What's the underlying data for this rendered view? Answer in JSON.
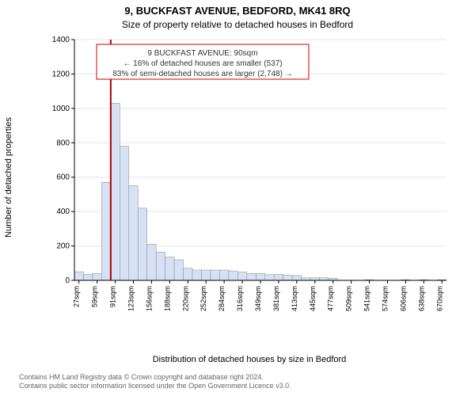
{
  "header": {
    "title": "9, BUCKFAST AVENUE, BEDFORD, MK41 8RQ",
    "subtitle": "Size of property relative to detached houses in Bedford"
  },
  "axes": {
    "ylabel": "Number of detached properties",
    "xlabel": "Distribution of detached houses by size in Bedford"
  },
  "chart": {
    "type": "histogram",
    "bar_fill": "#d6e1f4",
    "bar_stroke": "#888888",
    "grid_color": "#e5e5e5",
    "background_color": "#ffffff",
    "ylim": [
      0,
      1400
    ],
    "ytick_step": 200,
    "yticks": [
      0,
      200,
      400,
      600,
      800,
      1000,
      1200,
      1400
    ],
    "x_tick_labels": [
      "27sqm",
      "59sqm",
      "91sqm",
      "123sqm",
      "156sqm",
      "188sqm",
      "220sqm",
      "252sqm",
      "284sqm",
      "316sqm",
      "349sqm",
      "381sqm",
      "413sqm",
      "445sqm",
      "477sqm",
      "509sqm",
      "541sqm",
      "574sqm",
      "606sqm",
      "638sqm",
      "670sqm"
    ],
    "x_tick_positions_bins": [
      0,
      2,
      4,
      6,
      8,
      10,
      12,
      14,
      16,
      18,
      20,
      22,
      24,
      26,
      28,
      30,
      32,
      34,
      36,
      38,
      40
    ],
    "num_bins": 41,
    "values": [
      50,
      35,
      40,
      570,
      1030,
      780,
      550,
      420,
      210,
      165,
      135,
      120,
      70,
      60,
      60,
      60,
      60,
      55,
      48,
      40,
      40,
      33,
      35,
      30,
      28,
      15,
      15,
      15,
      12,
      0,
      0,
      0,
      4,
      0,
      0,
      0,
      4,
      0,
      4,
      0,
      4
    ],
    "reference_line": {
      "bin_index": 4,
      "color": "#aa0000",
      "value_sqm": 90
    },
    "annotation": {
      "lines": [
        "9 BUCKFAST AVENUE: 90sqm",
        "← 16% of detached houses are smaller (537)",
        "83% of semi-detached houses are larger (2,748) →"
      ],
      "border_color": "#cc0000",
      "text_color": "#333333"
    }
  },
  "attribution": {
    "line1": "Contains HM Land Registry data © Crown copyright and database right 2024.",
    "line2": "Contains public sector information licensed under the Open Government Licence v3.0."
  }
}
